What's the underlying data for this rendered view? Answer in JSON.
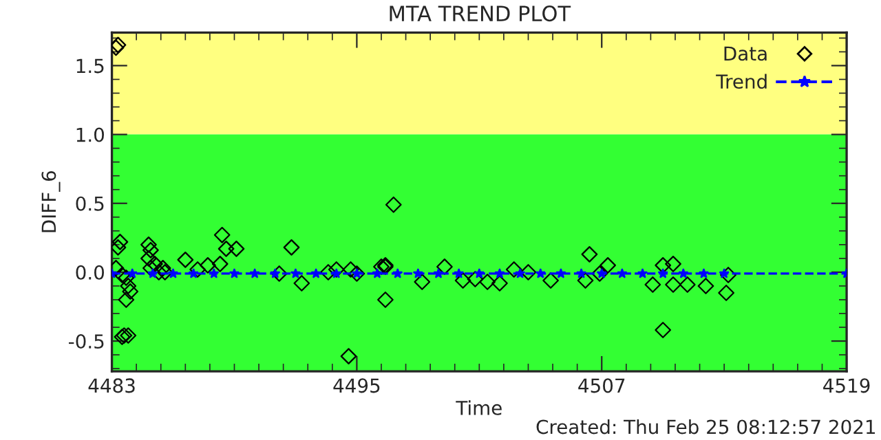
{
  "chart_data": {
    "type": "scatter",
    "title": "MTA TREND PLOT",
    "xlabel": "Time",
    "ylabel": "DIFF_6",
    "xlim": [
      4483,
      4519
    ],
    "xticks": [
      4483,
      4495,
      4507,
      4519
    ],
    "ylim": [
      -0.72,
      1.74
    ],
    "yticks": [
      -0.5,
      {
        "value": 0,
        "label": "0.0"
      },
      0.5,
      {
        "value": 1,
        "label": "1.0"
      },
      1.5
    ],
    "grid": false,
    "legend": "top right",
    "bands": [
      {
        "axis": "y",
        "from": 1.0,
        "to": 1.74,
        "color": "#ffff80"
      },
      {
        "axis": "y",
        "from": -0.72,
        "to": 1.0,
        "color": "#33ff33"
      }
    ],
    "series": [
      {
        "name": "Data",
        "type": "scatter",
        "marker": "diamond",
        "color": "#000000",
        "x": [
          4483.2,
          4483.3,
          4483.4,
          4483.3,
          4483.2,
          4483.5,
          4483.7,
          4483.8,
          4483.9,
          4483.7,
          4483.6,
          4483.5,
          4483.8,
          4484.8,
          4484.9,
          4484.8,
          4484.9,
          4485.1,
          4485.3,
          4485.5,
          4485.6,
          4486.6,
          4488.4,
          4488.6,
          4489.1,
          4488.3,
          4487.7,
          4487.2,
          4492.3,
          4491.8,
          4491.2,
          4493.6,
          4494.0,
          4494.7,
          4495.0,
          4496.4,
          4494.6,
          4496.8,
          4496.4,
          4496.4,
          4496.2,
          4498.2,
          4499.3,
          4500.2,
          4500.8,
          4501.4,
          4502.0,
          4502.7,
          4503.4,
          4504.5,
          4506.2,
          4506.4,
          4506.9,
          4507.3,
          4509.5,
          4510.0,
          4510.5,
          4510.5,
          4511.2,
          4510.0,
          4512.1,
          4513.1,
          4513.2
        ],
        "values": [
          1.63,
          1.65,
          0.22,
          0.18,
          0.03,
          -0.02,
          -0.04,
          -0.1,
          -0.14,
          -0.2,
          -0.46,
          -0.47,
          -0.46,
          0.2,
          0.16,
          0.1,
          0.03,
          0.06,
          0.0,
          0.03,
          0.0,
          0.09,
          0.27,
          0.17,
          0.17,
          0.06,
          0.05,
          0.02,
          -0.08,
          0.18,
          -0.01,
          0.0,
          0.02,
          0.02,
          -0.01,
          0.05,
          -0.61,
          0.49,
          -0.2,
          0.04,
          0.04,
          -0.07,
          0.04,
          -0.06,
          -0.05,
          -0.07,
          -0.08,
          0.02,
          0.0,
          -0.06,
          -0.06,
          0.13,
          -0.01,
          0.05,
          -0.09,
          0.05,
          0.06,
          -0.09,
          -0.09,
          -0.42,
          -0.1,
          -0.15,
          -0.02
        ]
      },
      {
        "name": "Trend",
        "type": "line",
        "marker": "star",
        "line_style": "dashed",
        "color": "#0000ff",
        "x": [
          4483,
          4484,
          4485,
          4486,
          4487,
          4488,
          4489,
          4490,
          4491,
          4492,
          4493,
          4494,
          4495,
          4496,
          4497,
          4498,
          4499,
          4500,
          4501,
          4502,
          4503,
          4504,
          4505,
          4506,
          4507,
          4508,
          4509,
          4510,
          4511,
          4512,
          4513,
          4519
        ],
        "values": [
          -0.01,
          -0.01,
          -0.01,
          -0.01,
          -0.01,
          -0.01,
          -0.01,
          -0.01,
          -0.01,
          -0.01,
          -0.01,
          -0.01,
          -0.01,
          -0.01,
          -0.01,
          -0.01,
          -0.01,
          -0.01,
          -0.01,
          -0.01,
          -0.01,
          -0.01,
          -0.01,
          -0.01,
          -0.01,
          -0.01,
          -0.01,
          -0.01,
          -0.01,
          -0.01,
          -0.01,
          -0.01
        ]
      }
    ],
    "annotations": [
      "Created: Thu Feb 25 08:12:57 2021"
    ]
  }
}
